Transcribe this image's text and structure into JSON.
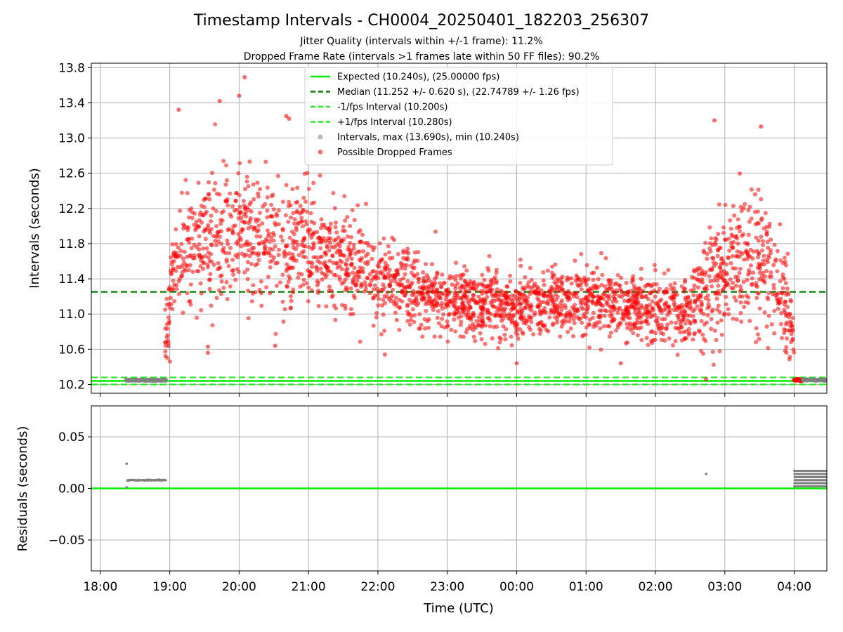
{
  "figure": {
    "title": "Timestamp Intervals - CH0004_20250401_182203_256307",
    "subtitle_line1": "Jitter Quality (intervals within +/-1 frame): 11.2%",
    "subtitle_line2": "Dropped Frame Rate (intervals >1 frames late within 50 FF files): 90.2%"
  },
  "chart_data": [
    {
      "type": "scatter",
      "panel": "top",
      "ylabel": "Intervals (seconds)",
      "xlabel": "",
      "xlim_hours": [
        17.87,
        28.47
      ],
      "ylim": [
        10.1,
        13.85
      ],
      "yticks": [
        10.2,
        10.6,
        11.0,
        11.4,
        11.8,
        12.2,
        12.6,
        13.0,
        13.4,
        13.8
      ],
      "ytick_labels": [
        "10.2",
        "10.6",
        "11.0",
        "11.4",
        "11.8",
        "12.2",
        "12.6",
        "13.0",
        "13.4",
        "13.8"
      ],
      "grid": true,
      "legend_position": "upper center",
      "colors": {
        "expected": "#00ee00",
        "median": "#008000",
        "band": "#22ee22",
        "dropped": "#ff0000",
        "normal": "#808080"
      },
      "lines": [
        {
          "name": "Expected (10.240s), (25.00000 fps)",
          "y": 10.24,
          "style": "solid",
          "color": "#00ee00"
        },
        {
          "name": "Median (11.252 +/- 0.620 s), (22.74789 +/- 1.26 fps)",
          "y": 11.252,
          "style": "dashed",
          "color": "#008000"
        },
        {
          "name": "-1/fps Interval (10.200s)",
          "y": 10.2,
          "style": "dashed",
          "color": "#22ee22"
        },
        {
          "name": "+1/fps Interval (10.280s)",
          "y": 10.28,
          "style": "dashed",
          "color": "#22ee22"
        }
      ],
      "series": [
        {
          "name": "Intervals, max (13.690s), min (10.240s)",
          "marker": "dot",
          "color": "#808080"
        },
        {
          "name": "Possible Dropped Frames",
          "marker": "dot",
          "color": "#ff0000"
        }
      ],
      "normal_clusters": [
        {
          "x_start": 18.37,
          "x_end": 18.95,
          "y": 10.248
        }
      ],
      "dropped_trend": [
        {
          "x": 18.93,
          "mean": 10.6,
          "spread": 0.25
        },
        {
          "x": 19.05,
          "mean": 11.45,
          "spread": 0.4
        },
        {
          "x": 19.3,
          "mean": 11.85,
          "spread": 0.45
        },
        {
          "x": 19.8,
          "mean": 11.95,
          "spread": 0.5
        },
        {
          "x": 20.3,
          "mean": 11.85,
          "spread": 0.5
        },
        {
          "x": 21.0,
          "mean": 11.75,
          "spread": 0.45
        },
        {
          "x": 21.5,
          "mean": 11.55,
          "spread": 0.4
        },
        {
          "x": 22.3,
          "mean": 11.35,
          "spread": 0.3
        },
        {
          "x": 23.0,
          "mean": 11.15,
          "spread": 0.25
        },
        {
          "x": 24.0,
          "mean": 11.1,
          "spread": 0.25
        },
        {
          "x": 25.0,
          "mean": 11.15,
          "spread": 0.25
        },
        {
          "x": 26.0,
          "mean": 11.05,
          "spread": 0.25
        },
        {
          "x": 26.5,
          "mean": 11.05,
          "spread": 0.25
        },
        {
          "x": 26.85,
          "mean": 11.4,
          "spread": 0.45
        },
        {
          "x": 27.2,
          "mean": 11.7,
          "spread": 0.5
        },
        {
          "x": 27.6,
          "mean": 11.55,
          "spread": 0.5
        },
        {
          "x": 27.9,
          "mean": 11.05,
          "spread": 0.35
        },
        {
          "x": 28.0,
          "mean": 10.75,
          "spread": 0.2
        }
      ],
      "dropped_extremes": [
        {
          "x": 20.08,
          "y": 13.69
        },
        {
          "x": 19.13,
          "y": 13.32
        },
        {
          "x": 19.72,
          "y": 13.42
        },
        {
          "x": 20.0,
          "y": 13.48
        },
        {
          "x": 20.68,
          "y": 13.25
        },
        {
          "x": 20.72,
          "y": 13.22
        },
        {
          "x": 26.85,
          "y": 13.2
        },
        {
          "x": 27.52,
          "y": 13.13
        },
        {
          "x": 19.55,
          "y": 10.63
        },
        {
          "x": 19.55,
          "y": 10.56
        },
        {
          "x": 20.52,
          "y": 10.64
        },
        {
          "x": 24.0,
          "y": 10.44
        },
        {
          "x": 25.5,
          "y": 10.44
        },
        {
          "x": 26.73,
          "y": 10.26
        },
        {
          "x": 22.1,
          "y": 10.54
        },
        {
          "x": 28.25,
          "y": 10.25
        }
      ],
      "dropped_end_cluster": {
        "x_start": 28.0,
        "x_end": 28.12,
        "y": 10.25
      }
    },
    {
      "type": "scatter",
      "panel": "bottom",
      "ylabel": "Residuals (seconds)",
      "xlabel": "Time (UTC)",
      "xlim_hours": [
        17.87,
        28.47
      ],
      "ylim": [
        -0.08,
        0.08
      ],
      "yticks": [
        -0.05,
        0.0,
        0.05
      ],
      "ytick_labels": [
        "−0.05",
        "0.00",
        "0.05"
      ],
      "xticks_hours": [
        18,
        19,
        20,
        21,
        22,
        23,
        24,
        25,
        26,
        27,
        28
      ],
      "xtick_labels": [
        "18:00",
        "19:00",
        "20:00",
        "21:00",
        "22:00",
        "23:00",
        "00:00",
        "01:00",
        "02:00",
        "03:00",
        "04:00"
      ],
      "grid": true,
      "zero_line": {
        "y": 0.0,
        "color": "#00ee00"
      },
      "residual_clusters": [
        {
          "x_start": 18.39,
          "x_end": 18.95,
          "y": 0.008
        },
        {
          "x_start": 28.0,
          "x_end": 28.47,
          "y_min": 0.002,
          "y_max": 0.017
        }
      ],
      "residual_points": [
        {
          "x": 18.38,
          "y": 0.024
        },
        {
          "x": 18.38,
          "y": 0.001
        },
        {
          "x": 26.73,
          "y": 0.014
        }
      ]
    }
  ]
}
